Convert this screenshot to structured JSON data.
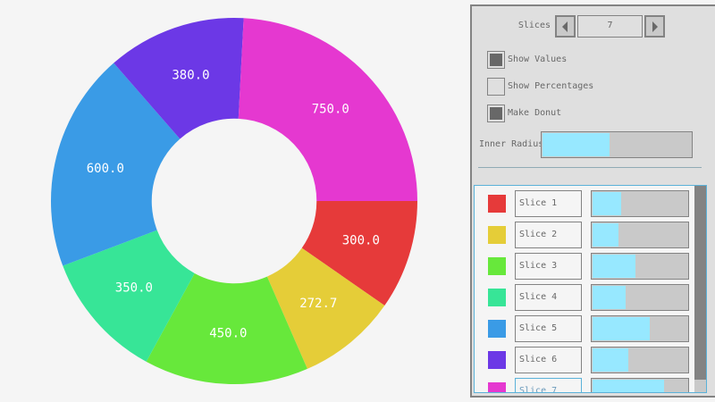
{
  "chart_data": {
    "type": "pie",
    "donut": true,
    "inner_radius_fraction": 0.45,
    "categories": [
      "Slice 1",
      "Slice 2",
      "Slice 3",
      "Slice 4",
      "Slice 5",
      "Slice 6",
      "Slice 7"
    ],
    "values": [
      300.0,
      272.7,
      450.0,
      350.0,
      600.0,
      380.0,
      750.0
    ],
    "value_labels": [
      "300.0",
      "272.7",
      "450.0",
      "350.0",
      "600.0",
      "380.0",
      "750.0"
    ],
    "colors": [
      "#e63a3a",
      "#e5cd38",
      "#67e83b",
      "#37e597",
      "#3a9be6",
      "#6c38e6",
      "#e538d0"
    ],
    "show_values": true,
    "show_percentages": false
  },
  "controls": {
    "slices_label": "Slices",
    "slices_value": "7",
    "show_values_label": "Show Values",
    "show_values_checked": true,
    "show_percentages_label": "Show Percentages",
    "show_percentages_checked": false,
    "make_donut_label": "Make Donut",
    "make_donut_checked": true,
    "inner_radius_label": "Inner Radius",
    "inner_radius_value": 0.45
  },
  "slice_list": {
    "slider_max": 1000,
    "items": [
      {
        "name": "Slice 1",
        "value": 300.0
      },
      {
        "name": "Slice 2",
        "value": 272.7
      },
      {
        "name": "Slice 3",
        "value": 450.0
      },
      {
        "name": "Slice 4",
        "value": 350.0
      },
      {
        "name": "Slice 5",
        "value": 600.0
      },
      {
        "name": "Slice 6",
        "value": 380.0
      },
      {
        "name": "Slice 7",
        "value": 750.0
      }
    ]
  }
}
